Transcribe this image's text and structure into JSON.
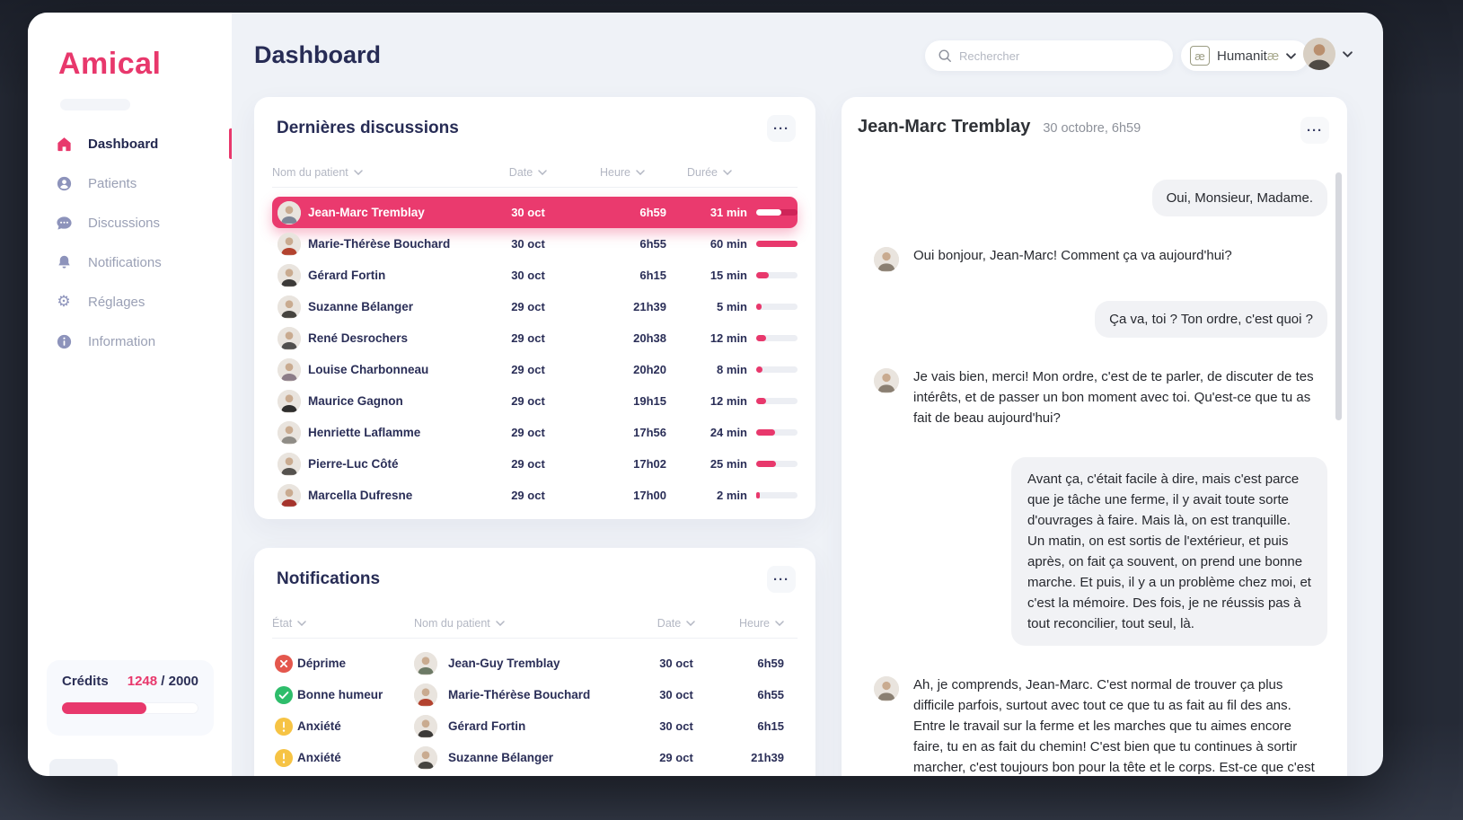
{
  "app": {
    "logo": "Amical",
    "accent_color": "#e8386c",
    "frame_color": "#262b37"
  },
  "header": {
    "page_title": "Dashboard",
    "search": {
      "placeholder": "Rechercher",
      "icon": "search-icon"
    },
    "org": {
      "name": "Humanitæ",
      "icon_glyph": "æ"
    }
  },
  "sidebar": {
    "items": [
      {
        "key": "dashboard",
        "label": "Dashboard",
        "icon": "home",
        "active": true
      },
      {
        "key": "patients",
        "label": "Patients",
        "icon": "person",
        "active": false
      },
      {
        "key": "discussions",
        "label": "Discussions",
        "icon": "chat",
        "active": false
      },
      {
        "key": "notifications",
        "label": "Notifications",
        "icon": "bell",
        "active": false
      },
      {
        "key": "reglages",
        "label": "Réglages",
        "icon": "gear",
        "active": false
      },
      {
        "key": "information",
        "label": "Information",
        "icon": "info",
        "active": false
      }
    ],
    "credits": {
      "label": "Crédits",
      "used": "1248",
      "separator": " / ",
      "total": "2000",
      "percent": 62
    }
  },
  "discussions": {
    "title": "Dernières discussions",
    "menu_icon": "ellipsis",
    "ellipsis_glyph": "···",
    "columns": [
      "Nom du patient",
      "Date",
      "Heure",
      "Durée"
    ],
    "rows": [
      {
        "name": "Jean-Marc Tremblay",
        "date": "30 oct",
        "time": "6h59",
        "duration": "31 min",
        "percent": 60,
        "highlighted": true,
        "avatar_color": "#7d8596"
      },
      {
        "name": "Marie-Thérèse Bouchard",
        "date": "30 oct",
        "time": "6h55",
        "duration": "60 min",
        "percent": 100,
        "highlighted": false,
        "avatar_color": "#b3432f"
      },
      {
        "name": "Gérard Fortin",
        "date": "30 oct",
        "time": "6h15",
        "duration": "15 min",
        "percent": 30,
        "highlighted": false,
        "avatar_color": "#3c3a38"
      },
      {
        "name": "Suzanne Bélanger",
        "date": "29 oct",
        "time": "21h39",
        "duration": "5 min",
        "percent": 14,
        "highlighted": false,
        "avatar_color": "#46443f"
      },
      {
        "name": "René Desrochers",
        "date": "29 oct",
        "time": "20h38",
        "duration": "12 min",
        "percent": 24,
        "highlighted": false,
        "avatar_color": "#514f4e"
      },
      {
        "name": "Louise Charbonneau",
        "date": "29 oct",
        "time": "20h20",
        "duration": "8 min",
        "percent": 16,
        "highlighted": false,
        "avatar_color": "#8c7d88"
      },
      {
        "name": "Maurice Gagnon",
        "date": "29 oct",
        "time": "19h15",
        "duration": "12 min",
        "percent": 24,
        "highlighted": false,
        "avatar_color": "#2f2e2d"
      },
      {
        "name": "Henriette Laflamme",
        "date": "29 oct",
        "time": "17h56",
        "duration": "24 min",
        "percent": 45,
        "highlighted": false,
        "avatar_color": "#8f8c86"
      },
      {
        "name": "Pierre-Luc Côté",
        "date": "29 oct",
        "time": "17h02",
        "duration": "25 min",
        "percent": 47,
        "highlighted": false,
        "avatar_color": "#55524e"
      },
      {
        "name": "Marcella Dufresne",
        "date": "29 oct",
        "time": "17h00",
        "duration": "2 min",
        "percent": 9,
        "highlighted": false,
        "avatar_color": "#a5342c"
      }
    ]
  },
  "notifications": {
    "title": "Notifications",
    "menu_icon": "ellipsis",
    "columns": [
      "État",
      "Nom du patient",
      "Date",
      "Heure"
    ],
    "status_colors": {
      "alert": "#e4574d",
      "good": "#2ebd6b",
      "warn": "#f6c344"
    },
    "rows": [
      {
        "status": "Déprime",
        "status_type": "alert",
        "name": "Jean-Guy Tremblay",
        "date": "30 oct",
        "time": "6h59",
        "avatar_color": "#6d7a66"
      },
      {
        "status": "Bonne humeur",
        "status_type": "good",
        "name": "Marie-Thérèse Bouchard",
        "date": "30 oct",
        "time": "6h55",
        "avatar_color": "#b3432f"
      },
      {
        "status": "Anxiété",
        "status_type": "warn",
        "name": "Gérard Fortin",
        "date": "30 oct",
        "time": "6h15",
        "avatar_color": "#3c3a38"
      },
      {
        "status": "Anxiété",
        "status_type": "warn",
        "name": "Suzanne Bélanger",
        "date": "29 oct",
        "time": "21h39",
        "avatar_color": "#46443f"
      }
    ]
  },
  "chat": {
    "patient_name": "Jean-Marc Tremblay",
    "datetime": "30 octobre, 6h59",
    "menu_icon": "ellipsis",
    "assistant_avatar_color": "#8a7f72",
    "messages": [
      {
        "side": "right",
        "big": false,
        "text": "Oui, Monsieur, Madame."
      },
      {
        "side": "left",
        "big": false,
        "text": "Oui bonjour, Jean-Marc! Comment ça va aujourd'hui?"
      },
      {
        "side": "right",
        "big": false,
        "text": "Ça va, toi ? Ton ordre, c'est quoi ?"
      },
      {
        "side": "left",
        "big": false,
        "text": "Je vais bien, merci! Mon ordre, c'est de te parler, de discuter de tes intérêts, et de passer un bon moment avec toi. Qu'est-ce que tu as fait de beau aujourd'hui?"
      },
      {
        "side": "right",
        "big": true,
        "text": "Avant ça, c'était facile à dire, mais c'est parce que je tâche une ferme, il y avait toute sorte d'ouvrages à faire. Mais là, on est tranquille. Un matin, on est sortis de l'extérieur, et puis après, on fait ça souvent, on prend une bonne marche. Et puis, il y a un problème chez moi, et c'est la mémoire. Des fois, je ne réussis pas à tout reconcilier, tout seul, là."
      },
      {
        "side": "left",
        "big": false,
        "text": "Ah, je comprends, Jean-Marc. C'est normal de trouver ça plus difficile parfois, surtout avec tout ce que tu as fait au fil des ans. Entre le travail sur la ferme et les marches que tu aimes encore faire, tu en as fait du chemin! C'est bien que tu continues à sortir marcher, c'est toujours bon pour la tête et le corps. Est-ce que c'est dans ton coin que tu marches souvent, ou tu aimes changer d'endroit?"
      }
    ]
  }
}
